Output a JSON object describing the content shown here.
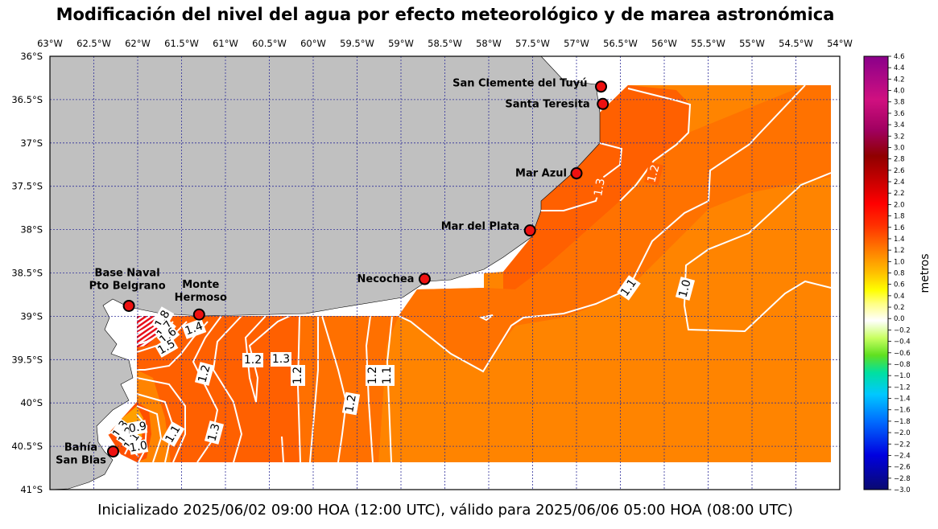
{
  "title": "Modificación del nivel del agua por efecto meteorológico y de marea astronómica",
  "subtitle": "Inicializado 2025/06/02 09:00 HOA (12:00 UTC), válido para 2025/06/06 05:00 HOA (08:00 UTC)",
  "colors": {
    "land": "#c0c0c0",
    "sea_high": "#ff6000",
    "sea_mid": "#ff7300",
    "sea_low": "#ff8400",
    "grid": "#30309a",
    "contour": "#ffffff",
    "marker": "#ee1111"
  },
  "map": {
    "lon_range": [
      -63,
      -54
    ],
    "lat_range": [
      -41,
      -36
    ],
    "lon_labels": [
      "63°W",
      "62.5°W",
      "62°W",
      "61.5°W",
      "61°W",
      "60.5°W",
      "60°W",
      "59.5°W",
      "59°W",
      "58.5°W",
      "58°W",
      "57.5°W",
      "57°W",
      "56.5°W",
      "56°W",
      "55.5°W",
      "55°W",
      "54.5°W",
      "54°W"
    ],
    "lat_labels": [
      "36°S",
      "36.5°S",
      "37°S",
      "37.5°S",
      "38°S",
      "38.5°S",
      "39°S",
      "39.5°S",
      "40°S",
      "40.5°S",
      "41°S"
    ],
    "locations": [
      {
        "name": "San Clemente del Tuyú",
        "lon": -56.72,
        "lat": -36.35
      },
      {
        "name": "Santa Teresita",
        "lon": -56.7,
        "lat": -36.55
      },
      {
        "name": "Mar Azul",
        "lon": -57.0,
        "lat": -37.35
      },
      {
        "name": "Mar del Plata",
        "lon": -57.53,
        "lat": -38.01
      },
      {
        "name": "Necochea",
        "lon": -58.73,
        "lat": -38.57
      },
      {
        "name": "Base Naval\nPto Belgrano",
        "lon": -62.1,
        "lat": -38.88
      },
      {
        "name": "Monte\nHermoso",
        "lon": -61.3,
        "lat": -38.98
      },
      {
        "name": "Bahía\nSan Blas",
        "lon": -62.28,
        "lat": -40.56
      }
    ],
    "contour_labels": [
      "1.2",
      "1.3",
      "1.0",
      "1.1",
      "1.3",
      "1.2",
      "1.2",
      "1.1",
      "1.2",
      "1.2",
      "1.3",
      "1.8",
      "1.7",
      "1.6",
      "1.5",
      "1.4",
      "1.2",
      "1.1",
      "1.3",
      "1.2",
      "1.1",
      "0.9",
      "1.0"
    ]
  },
  "colorbar": {
    "label": "metros",
    "range": [
      -3.0,
      4.6
    ],
    "ticks": [
      "4.6",
      "4.4",
      "4.2",
      "4.0",
      "3.8",
      "3.6",
      "3.4",
      "3.2",
      "3.0",
      "2.8",
      "2.6",
      "2.4",
      "2.2",
      "2.0",
      "1.8",
      "1.6",
      "1.4",
      "1.2",
      "1.0",
      "0.8",
      "0.6",
      "0.4",
      "0.2",
      "0.0",
      "−0.2",
      "−0.4",
      "−0.6",
      "−0.8",
      "−1.0",
      "−1.2",
      "−1.4",
      "−1.6",
      "−1.8",
      "−2.0",
      "−2.2",
      "−2.4",
      "−2.6",
      "−2.8",
      "−3.0"
    ]
  }
}
